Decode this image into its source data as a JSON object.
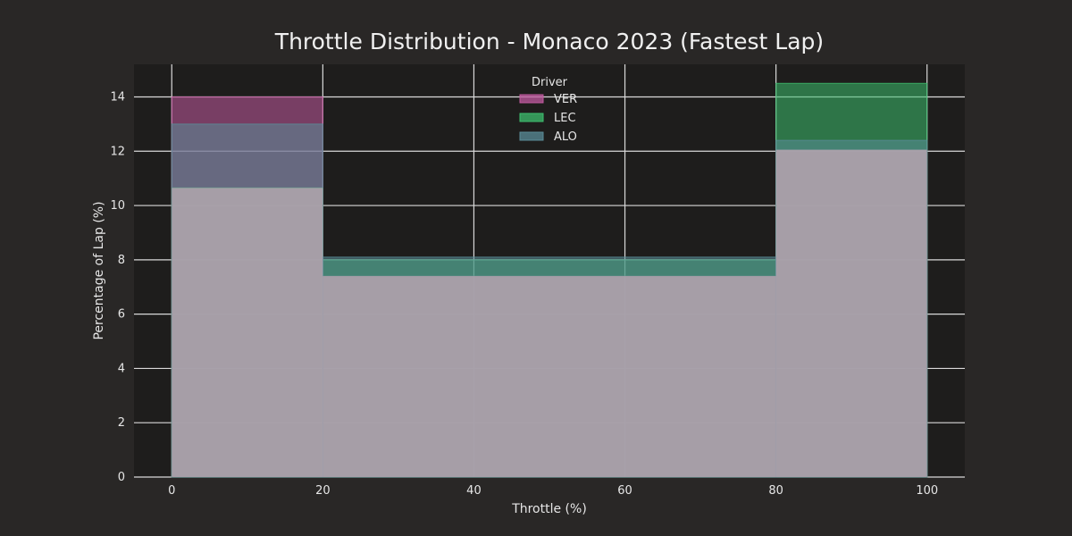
{
  "chart_data": {
    "type": "bar",
    "title": "Throttle Distribution - Monaco 2023 (Fastest Lap)",
    "xlabel": "Throttle (%)",
    "ylabel": "Percentage of Lap (%)",
    "xlim": [
      -5,
      105
    ],
    "ylim": [
      0,
      15.2
    ],
    "xticks": [
      0,
      20,
      40,
      60,
      80,
      100
    ],
    "yticks": [
      0,
      2,
      4,
      6,
      8,
      10,
      12,
      14
    ],
    "bin_edges": [
      0,
      20,
      80,
      100
    ],
    "grid": true,
    "legend": {
      "title": "Driver",
      "placement": "top-center"
    },
    "series": [
      {
        "name": "VER",
        "color": "#c25aa0",
        "values": [
          14.0,
          7.4,
          12.05
        ]
      },
      {
        "name": "LEC",
        "color": "#3dbe6e",
        "values": [
          10.65,
          8.0,
          14.5
        ]
      },
      {
        "name": "ALO",
        "color": "#5a8c98",
        "values": [
          13.0,
          8.1,
          12.4
        ]
      }
    ]
  }
}
